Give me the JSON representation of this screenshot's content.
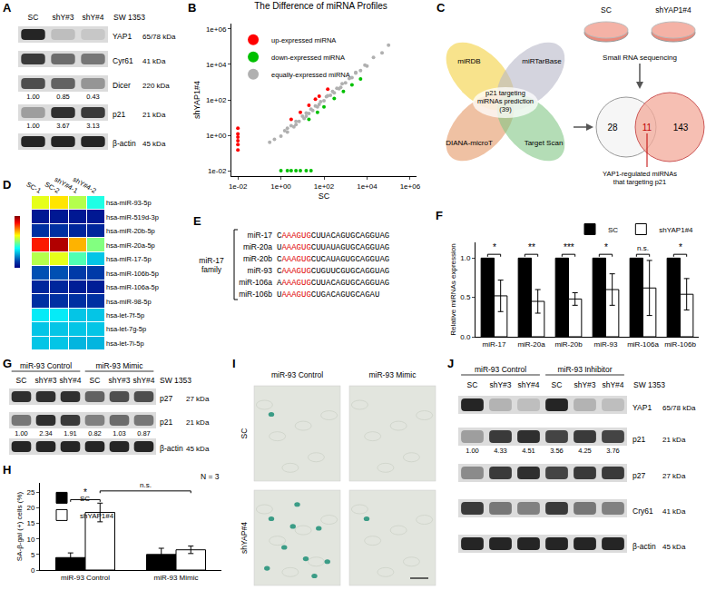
{
  "panels": {
    "A": {
      "letter": "A",
      "cell_line": "SW 1353",
      "lanes": [
        "SC",
        "shY#3",
        "shY#4"
      ],
      "rows": [
        {
          "name": "YAP1",
          "kda": "65/78 kDa",
          "intensity": [
            0.9,
            0.15,
            0.1
          ]
        },
        {
          "name": "Cyr61",
          "kda": "41 kDa",
          "intensity": [
            0.8,
            0.55,
            0.5
          ]
        },
        {
          "name": "Dicer",
          "kda": "220 kDa",
          "intensity": [
            0.7,
            0.6,
            0.35
          ],
          "quant": [
            "1.00",
            "0.85",
            "0.43"
          ]
        },
        {
          "name": "p21",
          "kda": "21 kDa",
          "intensity": [
            0.3,
            0.85,
            0.8
          ],
          "quant": [
            "1.00",
            "3.67",
            "3.13"
          ]
        },
        {
          "name": "β-actin",
          "kda": "45 kDa",
          "intensity": [
            0.9,
            0.9,
            0.9
          ]
        }
      ]
    },
    "C": {
      "letter": "C",
      "databases": [
        "miRDB",
        "miRTarBase",
        "DIANA-microT",
        "Target Scan"
      ],
      "center_lines": [
        "p21 targeting",
        "miRNAs prediction",
        "(39)"
      ],
      "samples": [
        "SC",
        "shYAP1#4"
      ],
      "method": "Small RNA sequencing",
      "venn": {
        "left": 28,
        "overlap": 11,
        "right": 143
      },
      "pointer_lines": [
        "YAP1-regulated miRNAs",
        "that targeting p21"
      ]
    },
    "E": {
      "letter": "E",
      "family_label": "miR-17 family",
      "seed": "AAAGUG",
      "sequences": [
        {
          "name": "miR-17",
          "seq": "CAAAGUGCUUACAGUGCAGGUAG"
        },
        {
          "name": "miR-20a",
          "seq": "UAAAGUGCUUAUAGUGCAGGUAG"
        },
        {
          "name": "miR-20b",
          "seq": "CAAAGUGCUCAUAGUGCAGGUAG"
        },
        {
          "name": "miR-93",
          "seq": "CAAAGUGCUGUUCGUGCAGGUAG"
        },
        {
          "name": "miR-106a",
          "seq": "AAAAGUGCUUACAGUGCAGGUAG"
        },
        {
          "name": "miR-106b",
          "seq": "UAAAGUGCUGACAGUGCAGAU"
        }
      ]
    },
    "G": {
      "letter": "G",
      "cell_line": "SW 1353",
      "groups": [
        "miR-93 Control",
        "miR-93 Mimic"
      ],
      "lanes": [
        "SC",
        "shY#3",
        "shY#4",
        "SC",
        "shY#3",
        "shY#4"
      ],
      "rows": [
        {
          "name": "p27",
          "kda": "27 kDa",
          "intensity": [
            0.85,
            0.85,
            0.85,
            0.6,
            0.7,
            0.7
          ]
        },
        {
          "name": "p21",
          "kda": "21 kDa",
          "intensity": [
            0.5,
            0.85,
            0.8,
            0.45,
            0.55,
            0.5
          ],
          "quant": [
            "1.00",
            "2.34",
            "1.91",
            "0.82",
            "1.03",
            "0.87"
          ]
        },
        {
          "name": "β-actin",
          "kda": "45 kDa",
          "intensity": [
            0.9,
            0.9,
            0.9,
            0.9,
            0.9,
            0.9
          ]
        }
      ]
    },
    "I": {
      "letter": "I",
      "columns": [
        "miR-93 Control",
        "miR-93 Mimic"
      ],
      "rows": [
        "SC",
        "shYAP#4"
      ],
      "stained_cells": [
        [
          1,
          0
        ],
        [
          9,
          1
        ]
      ]
    },
    "J": {
      "letter": "J",
      "cell_line": "SW 1353",
      "groups": [
        "miR-93 Control",
        "miR-93 Inhibitor"
      ],
      "lanes": [
        "SC",
        "shY#3",
        "shY#4",
        "SC",
        "shY#3",
        "shY#4"
      ],
      "rows": [
        {
          "name": "YAP1",
          "kda": "65/78 kDa",
          "intensity": [
            0.9,
            0.2,
            0.15,
            0.9,
            0.2,
            0.15
          ]
        },
        {
          "name": "p21",
          "kda": "21 kDa",
          "intensity": [
            0.3,
            0.8,
            0.85,
            0.75,
            0.8,
            0.75
          ],
          "quant": [
            "1.00",
            "4.33",
            "4.51",
            "3.56",
            "4.25",
            "3.76"
          ]
        },
        {
          "name": "p27",
          "kda": "27 kDa",
          "intensity": [
            0.4,
            0.8,
            0.85,
            0.75,
            0.8,
            0.8
          ]
        },
        {
          "name": "Cry61",
          "kda": "41 kDa",
          "intensity": [
            0.8,
            0.5,
            0.45,
            0.8,
            0.5,
            0.45
          ]
        },
        {
          "name": "β-actin",
          "kda": "45 kDa",
          "intensity": [
            0.9,
            0.9,
            0.9,
            0.9,
            0.9,
            0.9
          ]
        }
      ]
    }
  },
  "chart_data": [
    {
      "panel": "B",
      "type": "scatter",
      "title": "The Difference of miRNA Profiles",
      "x_label": "SC",
      "y_label": "shYAP1#4",
      "log": true,
      "grid": false,
      "legend": "top left",
      "marker": "circle",
      "xlim": [
        0.005,
        2000000
      ],
      "ylim": [
        0.005,
        2000000
      ],
      "xticks": [
        {
          "value": 0.01,
          "label": "1e-02"
        },
        {
          "value": 1,
          "label": "1e+00"
        },
        {
          "value": 100,
          "label": "1e+02"
        },
        {
          "value": 10000,
          "label": "1e+04"
        },
        {
          "value": 1000000,
          "label": "1e+06"
        }
      ],
      "yticks": [
        {
          "value": 0.01,
          "label": "1e-02"
        },
        {
          "value": 1,
          "label": "1e+00"
        },
        {
          "value": 100,
          "label": "1e+02"
        },
        {
          "value": 10000,
          "label": "1e+04"
        },
        {
          "value": 1000000,
          "label": "1e+06"
        }
      ],
      "series": [
        {
          "name": "up-expressed miRNA",
          "color": "#ff0000",
          "x": [
            0.01,
            0.01,
            0.01,
            0.01,
            0.01,
            0.01,
            3,
            8,
            20,
            40,
            60,
            150
          ],
          "y": [
            0.15,
            0.3,
            0.5,
            0.8,
            1.2,
            2.5,
            8,
            20,
            50,
            110,
            160,
            400
          ]
        },
        {
          "name": "down-expressed miRNA",
          "color": "#00c000",
          "x": [
            1,
            2,
            3,
            5,
            8,
            15,
            25,
            20,
            50,
            100,
            300,
            800,
            2000,
            5000
          ],
          "y": [
            0.01,
            0.01,
            0.01,
            0.01,
            0.01,
            0.01,
            0.01,
            8,
            20,
            40,
            120,
            300,
            700,
            1500
          ]
        },
        {
          "name": "equally-expressed miRNA",
          "color": "#b0b0b0",
          "x": [
            1,
            1.5,
            2,
            3,
            4,
            5,
            7,
            10,
            12,
            15,
            20,
            25,
            30,
            40,
            50,
            70,
            100,
            130,
            200,
            250,
            300,
            400,
            500,
            700,
            1000,
            1500,
            2000,
            3000,
            5000,
            8000,
            10000,
            20000,
            50000,
            100000,
            0.5,
            0.3,
            2,
            5,
            15,
            60,
            150,
            600,
            3000
          ],
          "y": [
            0.9,
            1.8,
            1.5,
            3.5,
            3,
            6,
            6,
            12,
            9,
            18,
            17,
            30,
            25,
            45,
            40,
            80,
            90,
            150,
            180,
            300,
            250,
            450,
            420,
            800,
            900,
            1600,
            1800,
            3500,
            4500,
            9000,
            8000,
            25000,
            45000,
            120000,
            0.6,
            0.4,
            2.5,
            4,
            12,
            55,
            170,
            500,
            3200
          ]
        }
      ]
    },
    {
      "panel": "D",
      "type": "heatmap",
      "x": [
        "SC-1",
        "SC-2",
        "shY#4-1",
        "shY#4-2"
      ],
      "y": [
        "hsa-miR-93-5p",
        "hsa-miR-519d-3p",
        "hsa-miR-20b-5p",
        "hsa-miR-20a-5p",
        "hsa-miR-17-5p",
        "hsa-miR-106b-5p",
        "hsa-miR-106a-5p",
        "hsa-miR-98-5p",
        "hsa-let-7f-5p",
        "hsa-let-7g-5p",
        "hsa-let-7i-5p"
      ],
      "z": [
        [
          0.6,
          0.65,
          0.55,
          0.4
        ],
        [
          0.05,
          0.05,
          0.05,
          0.05
        ],
        [
          0.1,
          0.1,
          0.08,
          0.08
        ],
        [
          0.85,
          0.95,
          0.7,
          0.5
        ],
        [
          0.55,
          0.6,
          0.45,
          0.3
        ],
        [
          0.15,
          0.15,
          0.12,
          0.12
        ],
        [
          0.08,
          0.08,
          0.06,
          0.06
        ],
        [
          0.1,
          0.1,
          0.1,
          0.1
        ],
        [
          0.35,
          0.35,
          0.3,
          0.3
        ],
        [
          0.3,
          0.3,
          0.3,
          0.3
        ],
        [
          0.3,
          0.3,
          0.28,
          0.28
        ]
      ],
      "zlim": [
        0,
        1
      ]
    },
    {
      "panel": "F",
      "type": "bar",
      "y_label": "Relative miRNAs expression",
      "legend": "top right",
      "grid": false,
      "categories": [
        "miR-17",
        "miR-20a",
        "miR-20b",
        "miR-93",
        "miR-106a",
        "miR-106b"
      ],
      "ylim": [
        0,
        1.2
      ],
      "yticks": [
        {
          "value": 0,
          "label": "0.0"
        },
        {
          "value": 0.5,
          "label": "0.5"
        },
        {
          "value": 1,
          "label": "1.0"
        }
      ],
      "series": [
        {
          "name": "SC",
          "color": "#000000",
          "values": [
            1,
            1,
            1,
            1,
            1,
            1
          ]
        },
        {
          "name": "shYAP1#4",
          "color": "#ffffff",
          "values": [
            0.52,
            0.45,
            0.48,
            0.6,
            0.62,
            0.54
          ],
          "error": [
            0.2,
            0.15,
            0.08,
            0.2,
            0.35,
            0.2
          ]
        }
      ],
      "significance": [
        "*",
        "**",
        "***",
        "*",
        "n.s.",
        "*"
      ]
    },
    {
      "panel": "H",
      "type": "bar",
      "y_label": "SA-β-gal (+) cells (%)",
      "legend": "top left",
      "grid": false,
      "note": "N = 3",
      "categories": [
        "miR-93 Control",
        "miR-93 Mimic"
      ],
      "ylim": [
        0,
        28
      ],
      "yticks": [
        0,
        5,
        10,
        15,
        20,
        25
      ],
      "series": [
        {
          "name": "SC",
          "color": "#000000",
          "values": [
            4,
            5
          ],
          "error": [
            1.5,
            2
          ]
        },
        {
          "name": "shYAP1#4",
          "color": "#ffffff",
          "values": [
            18.5,
            6.5
          ],
          "error": [
            3,
            1.2
          ]
        }
      ],
      "comparisons": [
        {
          "text": "*",
          "from": {
            "category": "miR-93 Control",
            "series": "SC"
          },
          "to": {
            "category": "miR-93 Control",
            "series": "shYAP1#4"
          }
        },
        {
          "text": "n.s.",
          "from": {
            "category": "miR-93 Control",
            "series": "shYAP1#4"
          },
          "to": {
            "category": "miR-93 Mimic",
            "series": "shYAP1#4"
          }
        }
      ]
    }
  ]
}
